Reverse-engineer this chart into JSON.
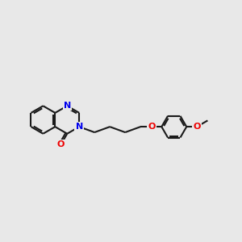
{
  "bg": "#e8e8e8",
  "bc": "#1a1a1a",
  "Nc": "#0000ee",
  "Oc": "#ee0000",
  "fs": 8.0,
  "bw": 1.5,
  "r": 0.58,
  "ph_r": 0.52,
  "xlim": [
    0,
    10
  ],
  "ylim": [
    0,
    7
  ]
}
